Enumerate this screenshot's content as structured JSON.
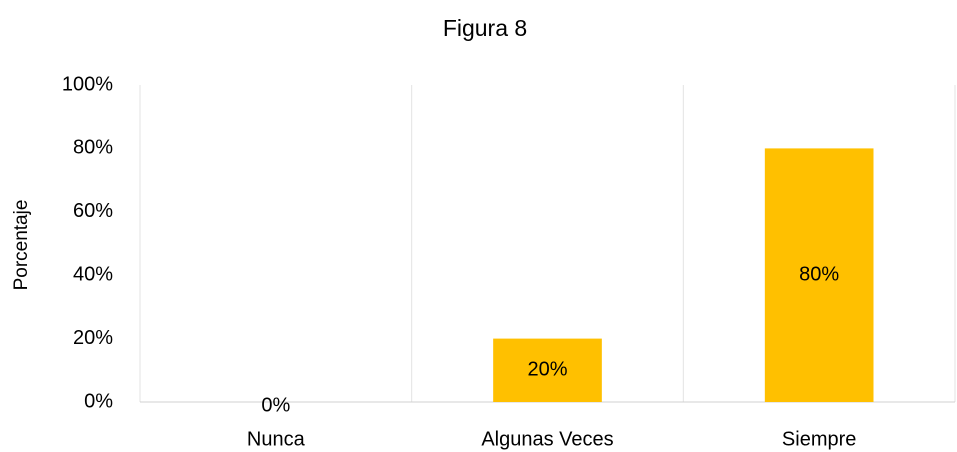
{
  "chart_data": {
    "type": "bar",
    "title": "Figura 8",
    "y_label": "Porcentaje",
    "categories": [
      "Nunca",
      "Algunas Veces",
      "Siempre"
    ],
    "values": [
      0,
      20,
      80
    ],
    "value_labels": [
      "0%",
      "20%",
      "80%"
    ],
    "color": "#ffc000",
    "ylim": [
      0,
      100
    ],
    "yticks": [
      {
        "value": 0,
        "label": "0%"
      },
      {
        "value": 20,
        "label": "20%"
      },
      {
        "value": 40,
        "label": "40%"
      },
      {
        "value": 60,
        "label": "60%"
      },
      {
        "value": 80,
        "label": "80%"
      },
      {
        "value": 100,
        "label": "100%"
      }
    ],
    "grid": false
  }
}
